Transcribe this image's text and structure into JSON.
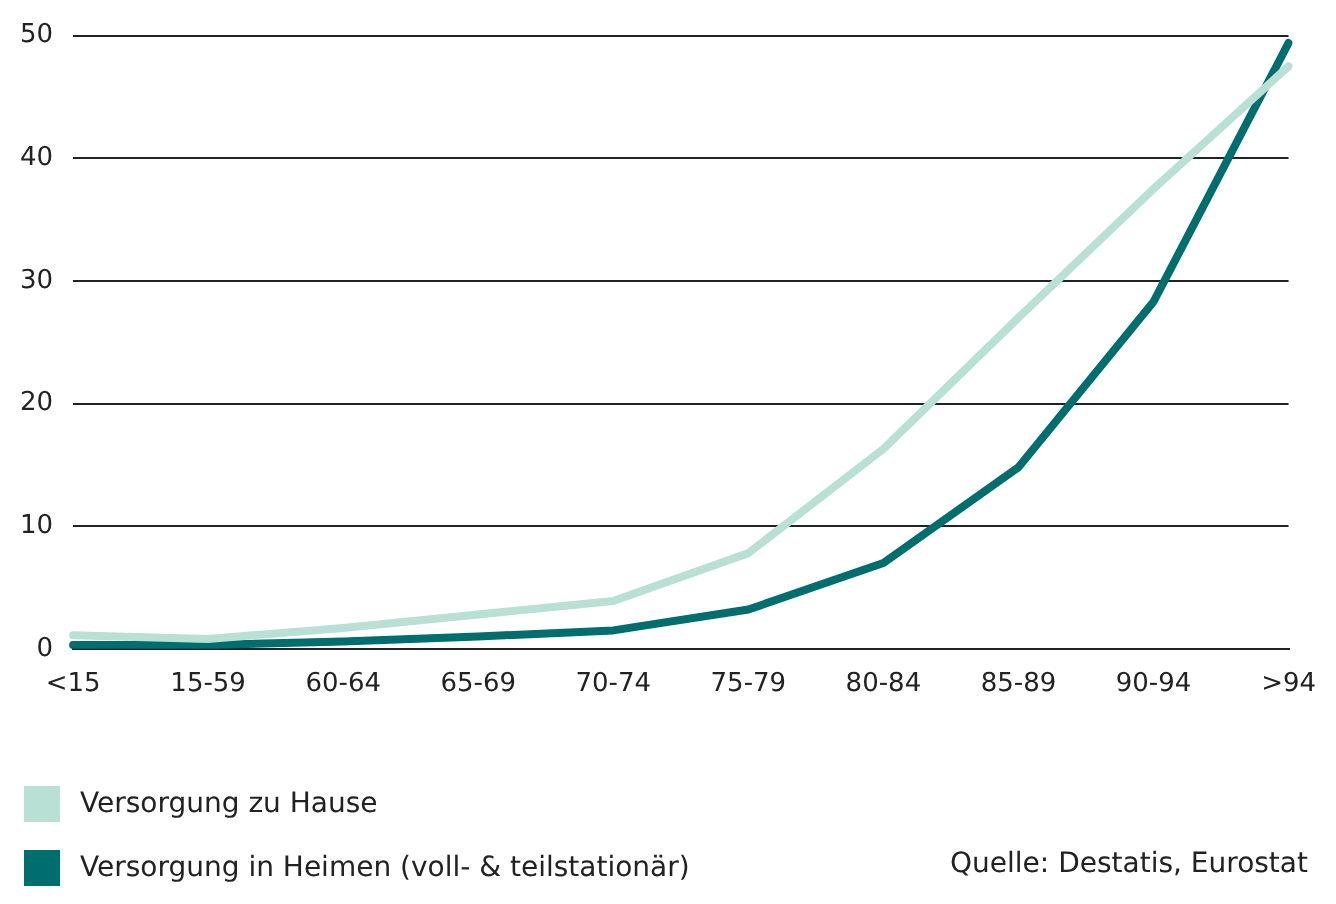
{
  "chart_data": {
    "type": "line",
    "categories": [
      "<15",
      "15-59",
      "60-64",
      "65-69",
      "70-74",
      "75-79",
      "80-84",
      "85-89",
      "90-94",
      ">94"
    ],
    "series": [
      {
        "name": "Versorgung zu Hause",
        "color": "#b9e0d4",
        "values": [
          1.1,
          0.8,
          1.7,
          2.8,
          3.9,
          7.8,
          16.3,
          27,
          37.5,
          47.5
        ]
      },
      {
        "name": "Versorgung in Heimen (voll- & teilstationär)",
        "color": "#006e6e",
        "values": [
          0.3,
          0.3,
          0.6,
          1.0,
          1.5,
          3.2,
          7.0,
          14.8,
          28.3,
          49.4
        ]
      }
    ],
    "ylim": [
      0,
      50
    ],
    "yticks": [
      0,
      10,
      20,
      30,
      40,
      50
    ],
    "grid": "y",
    "legend": "bottom",
    "marker": "none",
    "line_style": "solid",
    "annotations": [
      "Quelle: Destatis, Eurostat"
    ]
  }
}
